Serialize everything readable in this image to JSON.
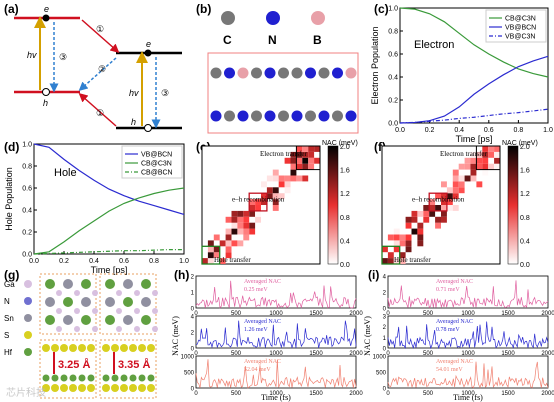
{
  "panel_labels": {
    "a": "(a)",
    "b": "(b)",
    "c": "(c)",
    "d": "(d)",
    "e": "(e)",
    "f": "(f)",
    "g": "(g)",
    "h": "(h)",
    "i": "(i)"
  },
  "panel_a": {
    "hv": "hv",
    "e": "e",
    "h": "h",
    "c1": "①",
    "c2": "②",
    "c3": "③"
  },
  "panel_b": {
    "atoms": [
      "C",
      "N",
      "B"
    ]
  },
  "watermark": "芯片科技",
  "colors": {
    "green": "#3a9a3a",
    "blue": "#2b2bd0",
    "red": "#d01020",
    "pink": "#e060a0",
    "salmon": "#f08070"
  },
  "chart_data": [
    {
      "type": "line",
      "panel": "c",
      "ylabel": "Electron Population",
      "xlabel": "Time [ps]",
      "xlim": [
        0,
        1
      ],
      "ylim": [
        0,
        1
      ],
      "xticks": [
        "0.0",
        "0.2",
        "0.4",
        "0.6",
        "0.8",
        "1.0"
      ],
      "yticks": [
        "0.0",
        "0.2",
        "0.4",
        "0.6",
        "0.8",
        "1.0"
      ],
      "annotation": "Electron",
      "legend": "top-right",
      "series": [
        {
          "name": "CB@C3N",
          "x": [
            0,
            0.1,
            0.2,
            0.3,
            0.4,
            0.5,
            0.6,
            0.7,
            0.8,
            0.9,
            1.0
          ],
          "values": [
            1.0,
            0.99,
            0.95,
            0.88,
            0.78,
            0.68,
            0.6,
            0.53,
            0.47,
            0.43,
            0.4
          ]
        },
        {
          "name": "VB@BCN",
          "x": [
            0,
            0.1,
            0.2,
            0.3,
            0.4,
            0.5,
            0.6,
            0.7,
            0.8,
            0.9,
            1.0
          ],
          "values": [
            0,
            0.005,
            0.02,
            0.06,
            0.14,
            0.25,
            0.34,
            0.42,
            0.49,
            0.54,
            0.58
          ]
        },
        {
          "name": "VB@C3N",
          "x": [
            0,
            0.1,
            0.2,
            0.3,
            0.4,
            0.5,
            0.6,
            0.7,
            0.8,
            0.9,
            1.0
          ],
          "values": [
            0,
            0.005,
            0.015,
            0.025,
            0.04,
            0.05,
            0.065,
            0.08,
            0.09,
            0.105,
            0.12
          ]
        }
      ]
    },
    {
      "type": "line",
      "panel": "d",
      "ylabel": "Hole Population",
      "xlabel": "Time [ps]",
      "xlim": [
        0,
        1
      ],
      "ylim": [
        0,
        1
      ],
      "xticks": [
        "0.0",
        "0.2",
        "0.4",
        "0.6",
        "0.8",
        "1.0"
      ],
      "yticks": [
        "0.0",
        "0.2",
        "0.4",
        "0.6",
        "0.8",
        "1.0"
      ],
      "annotation": "Hole",
      "legend": "top-right",
      "series": [
        {
          "name": "VB@BCN",
          "x": [
            0,
            0.1,
            0.2,
            0.3,
            0.4,
            0.5,
            0.6,
            0.7,
            0.8,
            0.9,
            1.0
          ],
          "values": [
            1.0,
            0.97,
            0.86,
            0.76,
            0.67,
            0.59,
            0.53,
            0.48,
            0.44,
            0.4,
            0.36
          ]
        },
        {
          "name": "CB@C3N",
          "x": [
            0,
            0.1,
            0.2,
            0.3,
            0.4,
            0.5,
            0.6,
            0.7,
            0.8,
            0.9,
            1.0
          ],
          "values": [
            0,
            0.02,
            0.11,
            0.21,
            0.3,
            0.39,
            0.46,
            0.51,
            0.55,
            0.58,
            0.6
          ]
        },
        {
          "name": "CB@BCN",
          "x": [
            0,
            0.1,
            0.2,
            0.3,
            0.4,
            0.5,
            0.6,
            0.7,
            0.8,
            0.9,
            1.0
          ],
          "values": [
            0,
            0.005,
            0.01,
            0.015,
            0.02,
            0.025,
            0.03,
            0.03,
            0.035,
            0.04,
            0.04
          ]
        }
      ]
    },
    {
      "type": "heatmap",
      "panel": "e",
      "colorbar_label": "NAC (meV)",
      "colorbar_ticks": [
        "0.0",
        "0.4",
        "0.8",
        "1.2",
        "1.6",
        "2.0"
      ],
      "annotations": [
        "Electron transfer",
        "e–h recombination",
        "Hole transfer"
      ]
    },
    {
      "type": "heatmap",
      "panel": "f",
      "colorbar_label": "NAC (meV)",
      "colorbar_ticks": [
        "0.0",
        "0.4",
        "0.8",
        "1.2",
        "1.6",
        "2.0"
      ],
      "annotations": [
        "Electron transfer",
        "e–h recombination",
        "Hole transfer"
      ]
    },
    {
      "type": "line",
      "panel": "h",
      "xlabel": "Time (fs)",
      "ylabel": "NAC (meV)",
      "xticks": [
        "0",
        "500",
        "1000",
        "1500",
        "2000"
      ],
      "rows": [
        {
          "label": "Averaged NAC",
          "value": "0.25 meV",
          "yticks": [
            "0",
            "1",
            "2"
          ]
        },
        {
          "label": "Averaged NAC",
          "value": "1.26 meV",
          "yticks": [
            "0",
            "2",
            "4"
          ]
        },
        {
          "label": "Averaged NAC",
          "value": "52.04 meV",
          "yticks": [
            "0",
            "500",
            "1000"
          ]
        }
      ]
    },
    {
      "type": "line",
      "panel": "i",
      "xlabel": "Time (fs)",
      "ylabel": "NAC (meV)",
      "xticks": [
        "0",
        "500",
        "1000",
        "1500",
        "2000"
      ],
      "rows": [
        {
          "label": "Averaged NAC",
          "value": "0.71 meV",
          "yticks": [
            "0",
            "2",
            "4"
          ]
        },
        {
          "label": "Averaged NAC",
          "value": "0.78 meV",
          "yticks": [
            "0",
            "1",
            "2",
            "3"
          ]
        },
        {
          "label": "Averaged NAC",
          "value": "54.01 meV",
          "yticks": [
            "0",
            "500",
            "1000"
          ]
        }
      ]
    }
  ],
  "panel_g": {
    "elements": [
      "Ga",
      "N",
      "Sn",
      "S",
      "Hf"
    ],
    "distances": [
      "3.25 Å",
      "3.35 Å"
    ]
  }
}
